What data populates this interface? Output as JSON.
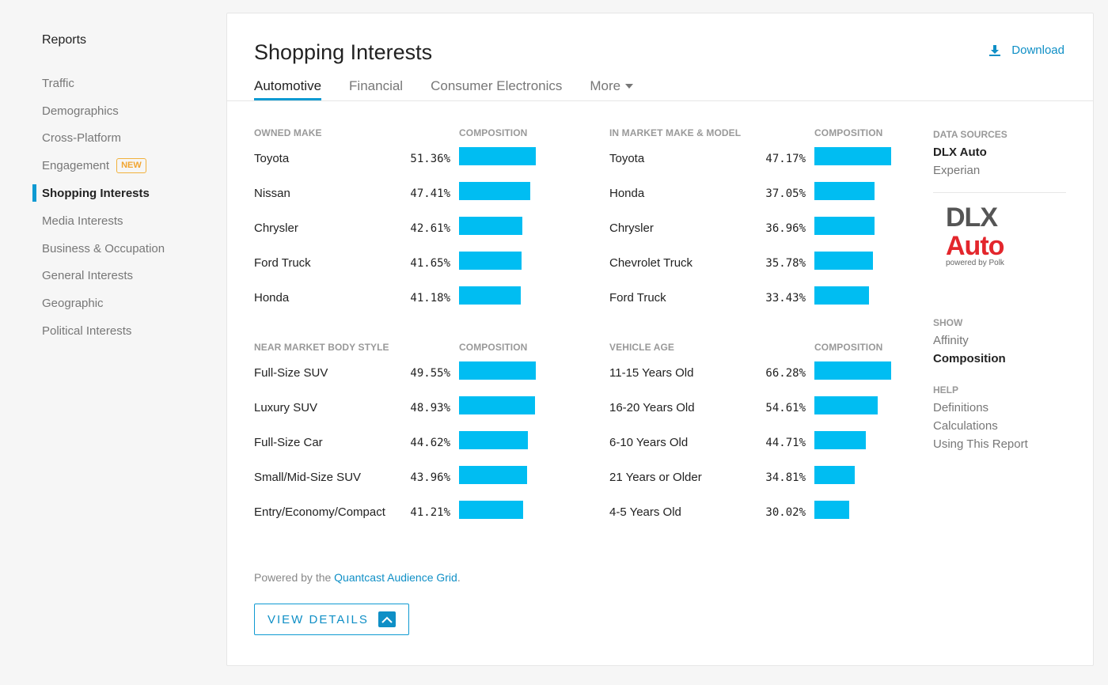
{
  "sidebar": {
    "title": "Reports",
    "items": [
      {
        "label": "Traffic"
      },
      {
        "label": "Demographics"
      },
      {
        "label": "Cross-Platform"
      },
      {
        "label": "Engagement",
        "badge": "NEW"
      },
      {
        "label": "Shopping Interests",
        "active": true
      },
      {
        "label": "Media Interests"
      },
      {
        "label": "Business & Occupation"
      },
      {
        "label": "General Interests"
      },
      {
        "label": "Geographic"
      },
      {
        "label": "Political Interests"
      }
    ]
  },
  "main": {
    "title": "Shopping Interests",
    "download_label": "Download",
    "tabs": [
      {
        "label": "Automotive",
        "active": true
      },
      {
        "label": "Financial"
      },
      {
        "label": "Consumer Electronics"
      },
      {
        "label": "More"
      }
    ],
    "sections": [
      {
        "heading": "OWNED MAKE",
        "metric": "COMPOSITION",
        "rows": [
          {
            "label": "Toyota",
            "pct": "51.36%",
            "value": 51.36
          },
          {
            "label": "Nissan",
            "pct": "47.41%",
            "value": 47.41
          },
          {
            "label": "Chrysler",
            "pct": "42.61%",
            "value": 42.61
          },
          {
            "label": "Ford Truck",
            "pct": "41.65%",
            "value": 41.65
          },
          {
            "label": "Honda",
            "pct": "41.18%",
            "value": 41.18
          }
        ]
      },
      {
        "heading": "IN MARKET MAKE & MODEL",
        "metric": "COMPOSITION",
        "rows": [
          {
            "label": "Toyota",
            "pct": "47.17%",
            "value": 47.17
          },
          {
            "label": "Honda",
            "pct": "37.05%",
            "value": 37.05
          },
          {
            "label": "Chrysler",
            "pct": "36.96%",
            "value": 36.96
          },
          {
            "label": "Chevrolet Truck",
            "pct": "35.78%",
            "value": 35.78
          },
          {
            "label": "Ford Truck",
            "pct": "33.43%",
            "value": 33.43
          }
        ]
      },
      {
        "heading": "NEAR MARKET BODY STYLE",
        "metric": "COMPOSITION",
        "rows": [
          {
            "label": "Full-Size SUV",
            "pct": "49.55%",
            "value": 49.55
          },
          {
            "label": "Luxury SUV",
            "pct": "48.93%",
            "value": 48.93
          },
          {
            "label": "Full-Size Car",
            "pct": "44.62%",
            "value": 44.62
          },
          {
            "label": "Small/Mid-Size SUV",
            "pct": "43.96%",
            "value": 43.96
          },
          {
            "label": "Entry/Economy/Compact",
            "pct": "41.21%",
            "value": 41.21
          }
        ]
      },
      {
        "heading": "VEHICLE AGE",
        "metric": "COMPOSITION",
        "rows": [
          {
            "label": "11-15 Years Old",
            "pct": "66.28%",
            "value": 66.28
          },
          {
            "label": "16-20 Years Old",
            "pct": "54.61%",
            "value": 54.61
          },
          {
            "label": "6-10 Years Old",
            "pct": "44.71%",
            "value": 44.71
          },
          {
            "label": "21 Years or Older",
            "pct": "34.81%",
            "value": 34.81
          },
          {
            "label": "4-5 Years Old",
            "pct": "30.02%",
            "value": 30.02
          }
        ]
      }
    ],
    "powered_prefix": "Powered by the ",
    "powered_link": "Quantcast Audience Grid",
    "powered_suffix": ".",
    "view_details_label": "VIEW DETAILS"
  },
  "right_panel": {
    "data_sources_heading": "DATA SOURCES",
    "data_sources": [
      {
        "label": "DLX Auto",
        "selected": true
      },
      {
        "label": "Experian"
      }
    ],
    "logo_dlx": "DLX",
    "logo_auto": "Auto",
    "logo_sub": "powered by Polk",
    "show_heading": "SHOW",
    "show_options": [
      {
        "label": "Affinity"
      },
      {
        "label": "Composition",
        "selected": true
      }
    ],
    "help_heading": "HELP",
    "help_items": [
      {
        "label": "Definitions"
      },
      {
        "label": "Calculations"
      },
      {
        "label": "Using This Report"
      }
    ]
  },
  "colors": {
    "accent": "#0f9ad2",
    "bar": "#00bdf2",
    "badge": "#f1a531",
    "logo_red": "#e3262c"
  }
}
